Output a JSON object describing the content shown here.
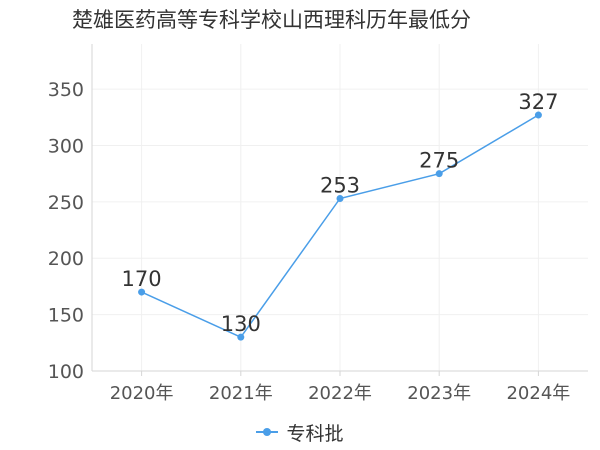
{
  "chart_data": {
    "type": "line",
    "title": "楚雄医药高等专科学校山西理科历年最低分",
    "categories": [
      "2020年",
      "2021年",
      "2022年",
      "2023年",
      "2024年"
    ],
    "series": [
      {
        "name": "专科批",
        "values": [
          170,
          130,
          253,
          275,
          327
        ],
        "color": "#4a9ee8"
      }
    ],
    "ylim": [
      100,
      390
    ],
    "yticks": [
      100,
      150,
      200,
      250,
      300,
      350
    ],
    "grid": true,
    "legend_position": "bottom-center",
    "data_labels": true
  }
}
